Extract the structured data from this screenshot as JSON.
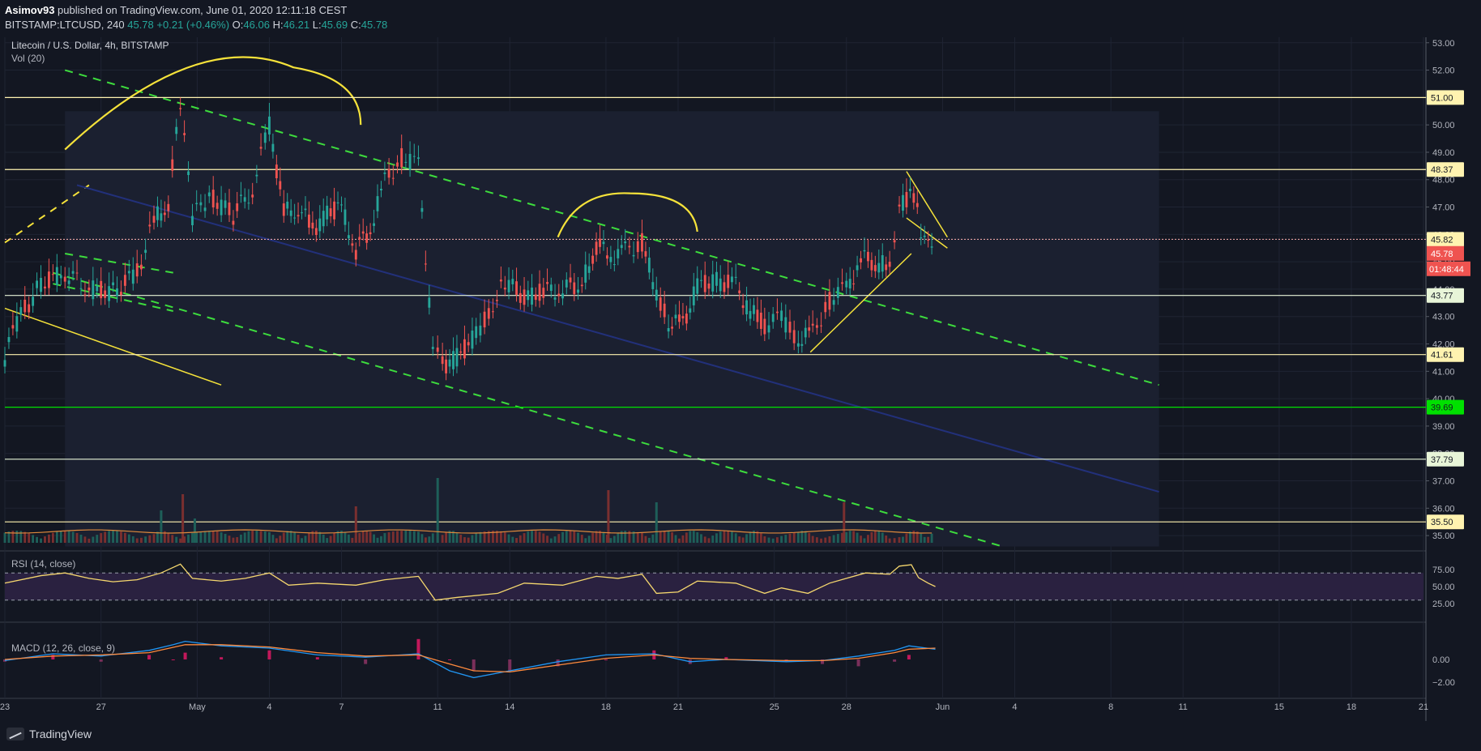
{
  "header": {
    "publisher": "Asimov93",
    "publish_text": "published on TradingView.com, June 01, 2020 12:11:18 CEST",
    "symbol": "BITSTAMP:LTCUSD, 240",
    "last": "45.78",
    "change": "+0.21 (+0.46%)",
    "o_label": "O:",
    "o_value": "46.06",
    "h_label": "H:",
    "h_value": "46.21",
    "l_label": "L:",
    "l_value": "45.69",
    "c_label": "C:",
    "c_value": "45.78"
  },
  "chart_data": {
    "type": "candlestick",
    "title": "Litecoin / U.S. Dollar, 4h, BITSTAMP",
    "indicator_vol": "Vol (20)",
    "rsi_label": "RSI (14, close)",
    "macd_label": "MACD (12, 26, close, 9)",
    "ylim": [
      34.5,
      53.2
    ],
    "price_ticks": [
      "53.00",
      "52.00",
      "51.00",
      "50.00",
      "49.00",
      "48.00",
      "47.00",
      "46.00",
      "45.00",
      "44.00",
      "43.00",
      "42.00",
      "41.00",
      "40.00",
      "39.00",
      "38.00",
      "37.00",
      "36.00",
      "35.00"
    ],
    "rsi_ticks": [
      "75.00",
      "50.00",
      "25.00"
    ],
    "macd_ticks": [
      "0.00",
      "−2.00"
    ],
    "x_ticks": [
      "23",
      "27",
      "May",
      "4",
      "7",
      "11",
      "14",
      "18",
      "21",
      "25",
      "28",
      "Jun",
      "4",
      "8",
      "11",
      "15",
      "18",
      "21"
    ],
    "x_tick_days": [
      23,
      27,
      31,
      34,
      37,
      41,
      44,
      48,
      51,
      55,
      58,
      62,
      65,
      69,
      72,
      76,
      79,
      82
    ],
    "x_range": [
      23.0,
      82.0
    ],
    "horizontal_levels": [
      {
        "value": 51.0,
        "label": "51.00",
        "color": "#fff3b0"
      },
      {
        "value": 48.37,
        "label": "48.37",
        "color": "#fff3b0"
      },
      {
        "value": 43.77,
        "label": "43.77",
        "color": "#e8f5d8"
      },
      {
        "value": 41.61,
        "label": "41.61",
        "color": "#fff3b0"
      },
      {
        "value": 39.69,
        "label": "39.69",
        "color": "#00e000"
      },
      {
        "value": 37.79,
        "label": "37.79",
        "color": "#e8f5d8"
      },
      {
        "value": 35.5,
        "label": "35.50",
        "color": "#fff3b0"
      }
    ],
    "current_price": {
      "value": 45.78,
      "label": "45.78",
      "countdown": "01:48:44"
    },
    "dotted_level": {
      "value": 45.82,
      "label": "45.82"
    },
    "price_path": [
      [
        23.0,
        41.5
      ],
      [
        23.5,
        42.8
      ],
      [
        24.5,
        44.2
      ],
      [
        25.5,
        44.6
      ],
      [
        26.5,
        44.0
      ],
      [
        27.5,
        43.9
      ],
      [
        28.5,
        44.6
      ],
      [
        29.2,
        46.5
      ],
      [
        29.8,
        47.2
      ],
      [
        30.3,
        50.8
      ],
      [
        30.8,
        46.6
      ],
      [
        31.5,
        47.4
      ],
      [
        32.5,
        46.7
      ],
      [
        33.3,
        47.7
      ],
      [
        34.0,
        50.0
      ],
      [
        34.6,
        46.8
      ],
      [
        35.2,
        47.0
      ],
      [
        35.8,
        46.2
      ],
      [
        36.4,
        46.7
      ],
      [
        37.0,
        47.0
      ],
      [
        37.6,
        45.4
      ],
      [
        38.2,
        46.2
      ],
      [
        38.8,
        48.0
      ],
      [
        39.5,
        48.8
      ],
      [
        40.2,
        48.5
      ],
      [
        40.8,
        42.0
      ],
      [
        41.2,
        41.2
      ],
      [
        41.8,
        41.5
      ],
      [
        42.6,
        42.3
      ],
      [
        43.3,
        43.5
      ],
      [
        43.8,
        44.3
      ],
      [
        44.6,
        43.7
      ],
      [
        45.4,
        43.9
      ],
      [
        46.2,
        44.0
      ],
      [
        47.0,
        44.2
      ],
      [
        47.6,
        45.6
      ],
      [
        48.2,
        45.2
      ],
      [
        48.8,
        45.4
      ],
      [
        49.5,
        45.7
      ],
      [
        50.1,
        43.9
      ],
      [
        50.6,
        42.8
      ],
      [
        51.2,
        42.7
      ],
      [
        51.8,
        44.1
      ],
      [
        52.6,
        44.3
      ],
      [
        53.4,
        44.1
      ],
      [
        54.0,
        43.2
      ],
      [
        54.6,
        42.7
      ],
      [
        55.3,
        42.9
      ],
      [
        56.0,
        42.2
      ],
      [
        56.6,
        42.4
      ],
      [
        57.3,
        43.6
      ],
      [
        58.0,
        44.0
      ],
      [
        58.6,
        45.1
      ],
      [
        59.2,
        45.0
      ],
      [
        59.8,
        44.8
      ],
      [
        60.2,
        47.0
      ],
      [
        60.5,
        47.2
      ],
      [
        60.8,
        47.5
      ],
      [
        61.1,
        46.2
      ],
      [
        61.4,
        45.9
      ],
      [
        61.7,
        45.8
      ]
    ],
    "volume_spikes": [
      [
        29.5,
        8
      ],
      [
        30.4,
        12
      ],
      [
        30.9,
        6
      ],
      [
        37.6,
        9
      ],
      [
        41.0,
        16
      ],
      [
        48.1,
        13
      ],
      [
        50.1,
        10
      ],
      [
        57.9,
        10
      ]
    ],
    "rsi_path": [
      [
        23.0,
        55
      ],
      [
        24.5,
        66
      ],
      [
        25.5,
        70
      ],
      [
        26.5,
        62
      ],
      [
        27.5,
        57
      ],
      [
        28.5,
        60
      ],
      [
        29.5,
        70
      ],
      [
        30.3,
        83
      ],
      [
        30.8,
        62
      ],
      [
        32.0,
        58
      ],
      [
        33.0,
        62
      ],
      [
        34.0,
        70
      ],
      [
        34.8,
        52
      ],
      [
        36.0,
        55
      ],
      [
        37.6,
        52
      ],
      [
        38.8,
        60
      ],
      [
        40.2,
        65
      ],
      [
        40.9,
        30
      ],
      [
        41.8,
        34
      ],
      [
        43.5,
        40
      ],
      [
        44.6,
        55
      ],
      [
        46.2,
        52
      ],
      [
        47.6,
        65
      ],
      [
        48.5,
        62
      ],
      [
        49.5,
        68
      ],
      [
        50.1,
        40
      ],
      [
        51.0,
        42
      ],
      [
        51.8,
        58
      ],
      [
        53.4,
        55
      ],
      [
        54.6,
        40
      ],
      [
        55.3,
        48
      ],
      [
        56.4,
        40
      ],
      [
        57.3,
        55
      ],
      [
        58.0,
        62
      ],
      [
        58.8,
        70
      ],
      [
        59.8,
        68
      ],
      [
        60.2,
        80
      ],
      [
        60.7,
        82
      ],
      [
        61.0,
        63
      ],
      [
        61.4,
        55
      ],
      [
        61.7,
        50
      ]
    ],
    "macd_path": [
      [
        23.0,
        -0.1
      ],
      [
        25.0,
        0.5
      ],
      [
        27.0,
        0.3
      ],
      [
        29.0,
        0.8
      ],
      [
        30.0,
        1.3
      ],
      [
        30.5,
        1.6
      ],
      [
        32.0,
        1.2
      ],
      [
        34.0,
        1.0
      ],
      [
        36.0,
        0.4
      ],
      [
        38.0,
        0.2
      ],
      [
        40.2,
        0.5
      ],
      [
        41.5,
        -1.0
      ],
      [
        42.5,
        -1.6
      ],
      [
        44.0,
        -1.0
      ],
      [
        46.0,
        -0.2
      ],
      [
        48.0,
        0.4
      ],
      [
        50.0,
        0.5
      ],
      [
        51.5,
        -0.2
      ],
      [
        53.0,
        0.0
      ],
      [
        55.5,
        -0.2
      ],
      [
        57.0,
        -0.1
      ],
      [
        58.5,
        0.3
      ],
      [
        60.0,
        0.8
      ],
      [
        60.6,
        1.2
      ],
      [
        61.7,
        0.9
      ]
    ],
    "signal_path": [
      [
        23.0,
        0.0
      ],
      [
        25.0,
        0.3
      ],
      [
        27.0,
        0.4
      ],
      [
        29.0,
        0.6
      ],
      [
        30.5,
        1.3
      ],
      [
        32.0,
        1.3
      ],
      [
        34.0,
        1.1
      ],
      [
        36.0,
        0.6
      ],
      [
        38.0,
        0.3
      ],
      [
        40.2,
        0.4
      ],
      [
        41.5,
        -0.4
      ],
      [
        42.5,
        -1.0
      ],
      [
        44.0,
        -1.1
      ],
      [
        46.0,
        -0.5
      ],
      [
        48.0,
        0.1
      ],
      [
        50.0,
        0.4
      ],
      [
        51.5,
        0.1
      ],
      [
        53.0,
        0.0
      ],
      [
        55.5,
        -0.1
      ],
      [
        57.0,
        -0.1
      ],
      [
        58.5,
        0.1
      ],
      [
        60.0,
        0.6
      ],
      [
        60.6,
        0.9
      ],
      [
        61.7,
        1.0
      ]
    ]
  },
  "footer": {
    "brand": "TradingView",
    "logo_icon": "tradingview-logo-icon"
  }
}
